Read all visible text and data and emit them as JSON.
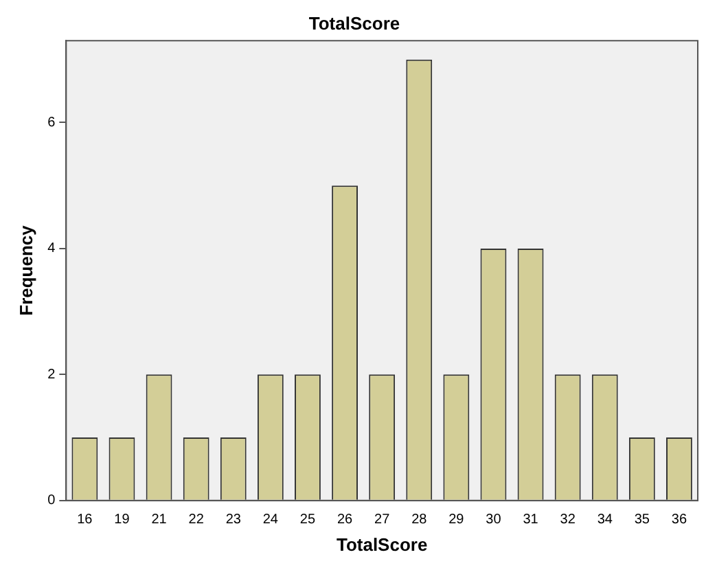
{
  "chart_data": {
    "type": "bar",
    "title": "TotalScore",
    "xlabel": "TotalScore",
    "ylabel": "Frequency",
    "categories": [
      "16",
      "19",
      "21",
      "22",
      "23",
      "24",
      "25",
      "26",
      "27",
      "28",
      "29",
      "30",
      "31",
      "32",
      "34",
      "35",
      "36"
    ],
    "values": [
      1,
      1,
      2,
      1,
      1,
      2,
      2,
      5,
      2,
      7,
      2,
      4,
      4,
      2,
      2,
      1,
      1
    ],
    "color": "#d3ce97",
    "ylim": [
      0,
      7.3
    ],
    "yticks": [
      0,
      2,
      4,
      6
    ],
    "grid": false,
    "legend": false
  }
}
